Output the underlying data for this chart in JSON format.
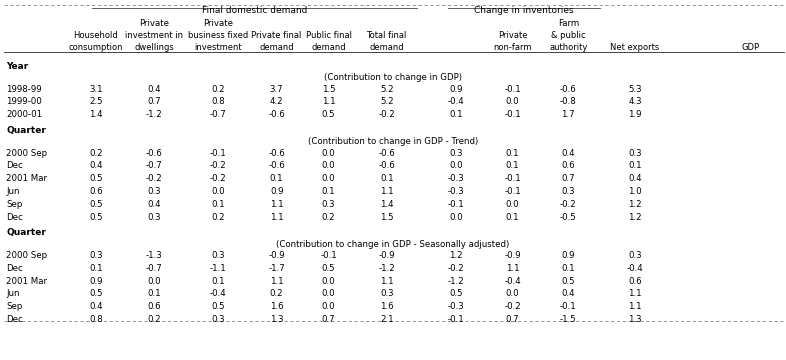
{
  "header_group1": "Final domestic demand",
  "header_group2": "Change in inventories",
  "section1_label": "Year",
  "section1_note": "(Contribution to change in GDP)",
  "section1_rows": [
    [
      "1998-99",
      "3.1",
      "0.4",
      "0.2",
      "3.7",
      "1.5",
      "5.2",
      "0.9",
      "-0.1",
      "-0.6",
      "5.3"
    ],
    [
      "1999-00",
      "2.5",
      "0.7",
      "0.8",
      "4.2",
      "1.1",
      "5.2",
      "-0.4",
      "0.0",
      "-0.8",
      "4.3"
    ],
    [
      "2000-01",
      "1.4",
      "-1.2",
      "-0.7",
      "-0.6",
      "0.5",
      "-0.2",
      "0.1",
      "-0.1",
      "1.7",
      "1.9"
    ]
  ],
  "section2_label": "Quarter",
  "section2_note": "(Contribution to change in GDP - Trend)",
  "section2_rows": [
    [
      "2000 Sep",
      "0.2",
      "-0.6",
      "-0.1",
      "-0.6",
      "0.0",
      "-0.6",
      "0.3",
      "0.1",
      "0.4",
      "0.3"
    ],
    [
      "Dec",
      "0.4",
      "-0.7",
      "-0.2",
      "-0.6",
      "0.0",
      "-0.6",
      "0.0",
      "0.1",
      "0.6",
      "0.1"
    ],
    [
      "2001 Mar",
      "0.5",
      "-0.2",
      "-0.2",
      "0.1",
      "0.0",
      "0.1",
      "-0.3",
      "-0.1",
      "0.7",
      "0.4"
    ],
    [
      "Jun",
      "0.6",
      "0.3",
      "0.0",
      "0.9",
      "0.1",
      "1.1",
      "-0.3",
      "-0.1",
      "0.3",
      "1.0"
    ],
    [
      "Sep",
      "0.5",
      "0.4",
      "0.1",
      "1.1",
      "0.3",
      "1.4",
      "-0.1",
      "0.0",
      "-0.2",
      "1.2"
    ],
    [
      "Dec",
      "0.5",
      "0.3",
      "0.2",
      "1.1",
      "0.2",
      "1.5",
      "0.0",
      "0.1",
      "-0.5",
      "1.2"
    ]
  ],
  "section3_label": "Quarter",
  "section3_note": "(Contribution to change in GDP - Seasonally adjusted)",
  "section3_rows": [
    [
      "2000 Sep",
      "0.3",
      "-1.3",
      "0.3",
      "-0.9",
      "-0.1",
      "-0.9",
      "1.2",
      "-0.9",
      "0.9",
      "0.3"
    ],
    [
      "Dec",
      "0.1",
      "-0.7",
      "-1.1",
      "-1.7",
      "0.5",
      "-1.2",
      "-0.2",
      "1.1",
      "0.1",
      "-0.4"
    ],
    [
      "2001 Mar",
      "0.9",
      "0.0",
      "0.1",
      "1.1",
      "0.0",
      "1.1",
      "-1.2",
      "-0.4",
      "0.5",
      "0.6"
    ],
    [
      "Jun",
      "0.5",
      "0.1",
      "-0.4",
      "0.2",
      "0.0",
      "0.3",
      "0.5",
      "0.0",
      "0.4",
      "1.1"
    ],
    [
      "Sep",
      "0.4",
      "0.6",
      "0.5",
      "1.6",
      "0.0",
      "1.6",
      "-0.3",
      "-0.2",
      "-0.1",
      "1.1"
    ],
    [
      "Dec",
      "0.8",
      "0.2",
      "0.3",
      "1.3",
      "0.7",
      "2.1",
      "-0.1",
      "0.7",
      "-1.5",
      "1.3"
    ]
  ],
  "bg_color": "#ffffff",
  "text_color": "#000000"
}
